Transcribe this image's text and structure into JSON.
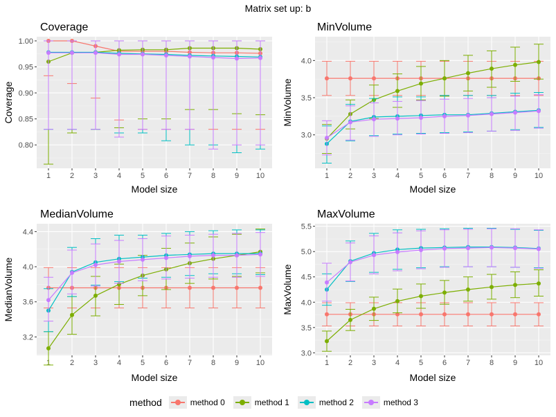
{
  "figure": {
    "title": "Matrix set up: b"
  },
  "legend": {
    "title": "method",
    "items": [
      {
        "label": "method 0",
        "color": "#F8766D"
      },
      {
        "label": "method 1",
        "color": "#7CAE00"
      },
      {
        "label": "method 2",
        "color": "#00BFC4"
      },
      {
        "label": "method 3",
        "color": "#C77CFF"
      }
    ]
  },
  "chart_data": [
    {
      "type": "line",
      "title": "Coverage",
      "xlabel": "Model size",
      "ylabel": "Coverage",
      "x": [
        1,
        2,
        3,
        4,
        5,
        6,
        7,
        8,
        9,
        10
      ],
      "ylim": [
        0.755,
        1.008
      ],
      "yticks": [
        "0.80",
        "0.85",
        "0.90",
        "0.95",
        "1.00"
      ],
      "grid": true,
      "series": [
        {
          "name": "method 0",
          "y": [
            1.0,
            1.0,
            0.99,
            0.98,
            0.98,
            0.98,
            0.978,
            0.977,
            0.977,
            0.976
          ],
          "lo": [
            0.933,
            0.918,
            0.89,
            0.848,
            0.83,
            0.83,
            0.83,
            0.83,
            0.83,
            0.83
          ],
          "hi": [
            1,
            1,
            1,
            1,
            1,
            1,
            1,
            1,
            1,
            1
          ]
        },
        {
          "name": "method 1",
          "y": [
            0.96,
            0.977,
            0.978,
            0.982,
            0.983,
            0.983,
            0.986,
            0.986,
            0.986,
            0.984
          ],
          "lo": [
            0.763,
            0.823,
            0.83,
            0.833,
            0.85,
            0.85,
            0.868,
            0.868,
            0.86,
            0.858
          ],
          "hi": [
            1,
            1,
            1,
            1,
            1,
            1,
            1,
            1,
            1,
            1
          ]
        },
        {
          "name": "method 2",
          "y": [
            0.978,
            0.978,
            0.978,
            0.976,
            0.975,
            0.974,
            0.972,
            0.971,
            0.97,
            0.969
          ],
          "lo": [
            0.83,
            0.83,
            0.83,
            0.823,
            0.823,
            0.808,
            0.8,
            0.8,
            0.785,
            0.792
          ],
          "hi": [
            1,
            1,
            1,
            1,
            1,
            1,
            1,
            1,
            1,
            1
          ]
        },
        {
          "name": "method 3",
          "y": [
            0.977,
            0.977,
            0.977,
            0.974,
            0.974,
            0.972,
            0.97,
            0.968,
            0.966,
            0.967
          ],
          "lo": [
            0.83,
            0.83,
            0.83,
            0.815,
            0.83,
            0.83,
            0.83,
            0.792,
            0.8,
            0.8
          ],
          "hi": [
            1,
            1,
            1,
            1,
            1,
            1,
            1,
            1,
            1,
            1
          ]
        }
      ]
    },
    {
      "type": "line",
      "title": "MinVolume",
      "xlabel": "Model size",
      "ylabel": "MinVolume",
      "x": [
        1,
        2,
        3,
        4,
        5,
        6,
        7,
        8,
        9,
        10
      ],
      "ylim": [
        2.55,
        4.32
      ],
      "yticks": [
        "3.0",
        "3.5",
        "4.0"
      ],
      "grid": true,
      "series": [
        {
          "name": "method 0",
          "y": [
            3.76,
            3.76,
            3.76,
            3.76,
            3.76,
            3.76,
            3.76,
            3.76,
            3.76,
            3.76
          ],
          "lo": [
            3.53,
            3.53,
            3.53,
            3.53,
            3.53,
            3.53,
            3.53,
            3.53,
            3.53,
            3.53
          ],
          "hi": [
            3.99,
            3.99,
            3.99,
            3.99,
            3.99,
            3.99,
            3.99,
            3.99,
            3.99,
            3.99
          ]
        },
        {
          "name": "method 1",
          "y": [
            2.95,
            3.28,
            3.47,
            3.59,
            3.69,
            3.76,
            3.83,
            3.89,
            3.94,
            3.98
          ],
          "lo": [
            2.75,
            3.08,
            3.22,
            3.37,
            3.47,
            3.52,
            3.59,
            3.64,
            3.72,
            3.75
          ],
          "hi": [
            3.14,
            3.47,
            3.67,
            3.82,
            3.92,
            4.0,
            4.07,
            4.13,
            4.18,
            4.22
          ]
        },
        {
          "name": "method 2",
          "y": [
            2.88,
            3.18,
            3.24,
            3.25,
            3.26,
            3.27,
            3.27,
            3.29,
            3.31,
            3.33
          ],
          "lo": [
            2.62,
            2.92,
            2.99,
            3.01,
            3.02,
            3.03,
            3.04,
            3.05,
            3.07,
            3.1
          ],
          "hi": [
            3.12,
            3.41,
            3.49,
            3.51,
            3.51,
            3.53,
            3.53,
            3.53,
            3.56,
            3.57
          ]
        },
        {
          "name": "method 3",
          "y": [
            2.96,
            3.17,
            3.21,
            3.22,
            3.23,
            3.25,
            3.26,
            3.28,
            3.3,
            3.32
          ],
          "lo": [
            2.73,
            2.93,
            2.98,
            3.0,
            3.01,
            3.02,
            3.03,
            3.05,
            3.06,
            3.09
          ],
          "hi": [
            3.19,
            3.39,
            3.43,
            3.45,
            3.46,
            3.48,
            3.49,
            3.5,
            3.52,
            3.54
          ]
        }
      ]
    },
    {
      "type": "line",
      "title": "MedianVolume",
      "xlabel": "Model size",
      "ylabel": "MedianVolume",
      "x": [
        1,
        2,
        3,
        4,
        5,
        6,
        7,
        8,
        9,
        10
      ],
      "ylim": [
        2.99,
        4.49
      ],
      "yticks": [
        "3.2",
        "3.6",
        "4.0",
        "4.4"
      ],
      "grid": true,
      "series": [
        {
          "name": "method 0",
          "y": [
            3.76,
            3.76,
            3.76,
            3.76,
            3.76,
            3.76,
            3.76,
            3.76,
            3.76,
            3.76
          ],
          "lo": [
            3.53,
            3.53,
            3.53,
            3.53,
            3.53,
            3.53,
            3.53,
            3.53,
            3.53,
            3.53
          ],
          "hi": [
            3.99,
            3.99,
            3.99,
            3.99,
            3.99,
            3.99,
            3.99,
            3.99,
            3.99,
            3.99
          ]
        },
        {
          "name": "method 1",
          "y": [
            3.07,
            3.45,
            3.67,
            3.8,
            3.9,
            3.97,
            4.04,
            4.09,
            4.13,
            4.17
          ],
          "lo": [
            2.88,
            3.23,
            3.44,
            3.57,
            3.67,
            3.74,
            3.81,
            3.86,
            3.89,
            3.93
          ],
          "hi": [
            3.26,
            3.66,
            3.89,
            4.03,
            4.13,
            4.21,
            4.27,
            4.34,
            4.37,
            4.43
          ]
        },
        {
          "name": "method 2",
          "y": [
            3.5,
            3.94,
            4.05,
            4.09,
            4.11,
            4.13,
            4.14,
            4.15,
            4.15,
            4.15
          ],
          "lo": [
            3.26,
            3.66,
            3.79,
            3.83,
            3.87,
            3.88,
            3.9,
            3.92,
            3.92,
            3.91
          ],
          "hi": [
            3.75,
            4.22,
            4.32,
            4.36,
            4.36,
            4.38,
            4.4,
            4.41,
            4.42,
            4.42
          ]
        },
        {
          "name": "method 3",
          "y": [
            3.62,
            3.93,
            4.02,
            4.06,
            4.08,
            4.1,
            4.12,
            4.13,
            4.13,
            4.14
          ],
          "lo": [
            3.38,
            3.69,
            3.78,
            3.81,
            3.84,
            3.86,
            3.87,
            3.88,
            3.88,
            3.89
          ],
          "hi": [
            3.88,
            4.19,
            4.26,
            4.3,
            4.32,
            4.35,
            4.36,
            4.37,
            4.38,
            4.39
          ]
        }
      ]
    },
    {
      "type": "line",
      "title": "MaxVolume",
      "xlabel": "Model size",
      "ylabel": "MaxVolume",
      "x": [
        1,
        2,
        3,
        4,
        5,
        6,
        7,
        8,
        9,
        10
      ],
      "ylim": [
        2.95,
        5.55
      ],
      "yticks": [
        "3.0",
        "3.5",
        "4.0",
        "4.5",
        "5.0",
        "5.5"
      ],
      "grid": true,
      "series": [
        {
          "name": "method 0",
          "y": [
            3.76,
            3.76,
            3.76,
            3.76,
            3.76,
            3.76,
            3.76,
            3.76,
            3.76,
            3.76
          ],
          "lo": [
            3.53,
            3.53,
            3.53,
            3.53,
            3.53,
            3.53,
            3.53,
            3.53,
            3.53,
            3.53
          ],
          "hi": [
            3.99,
            3.99,
            3.99,
            3.99,
            3.99,
            3.99,
            3.99,
            3.99,
            3.99,
            3.99
          ]
        },
        {
          "name": "method 1",
          "y": [
            3.23,
            3.65,
            3.87,
            4.02,
            4.12,
            4.19,
            4.25,
            4.3,
            4.34,
            4.37
          ],
          "lo": [
            3.03,
            3.44,
            3.64,
            3.79,
            3.88,
            3.96,
            4.02,
            4.06,
            4.09,
            4.12
          ],
          "hi": [
            3.43,
            3.86,
            4.1,
            4.26,
            4.36,
            4.43,
            4.5,
            4.55,
            4.6,
            4.64
          ]
        },
        {
          "name": "method 2",
          "y": [
            4.25,
            4.81,
            4.97,
            5.04,
            5.07,
            5.08,
            5.09,
            5.09,
            5.08,
            5.06
          ],
          "lo": [
            3.94,
            4.41,
            4.59,
            4.65,
            4.68,
            4.7,
            4.7,
            4.7,
            4.69,
            4.68
          ],
          "hi": [
            4.56,
            5.21,
            5.36,
            5.43,
            5.44,
            5.45,
            5.46,
            5.46,
            5.44,
            5.42
          ]
        },
        {
          "name": "method 3",
          "y": [
            4.39,
            4.79,
            4.93,
            4.99,
            5.03,
            5.06,
            5.07,
            5.08,
            5.07,
            5.05
          ],
          "lo": [
            4.02,
            4.42,
            4.56,
            4.62,
            4.66,
            4.69,
            4.7,
            4.7,
            4.69,
            4.67
          ],
          "hi": [
            4.77,
            5.17,
            5.31,
            5.37,
            5.41,
            5.43,
            5.44,
            5.45,
            5.45,
            5.43
          ]
        }
      ]
    }
  ]
}
